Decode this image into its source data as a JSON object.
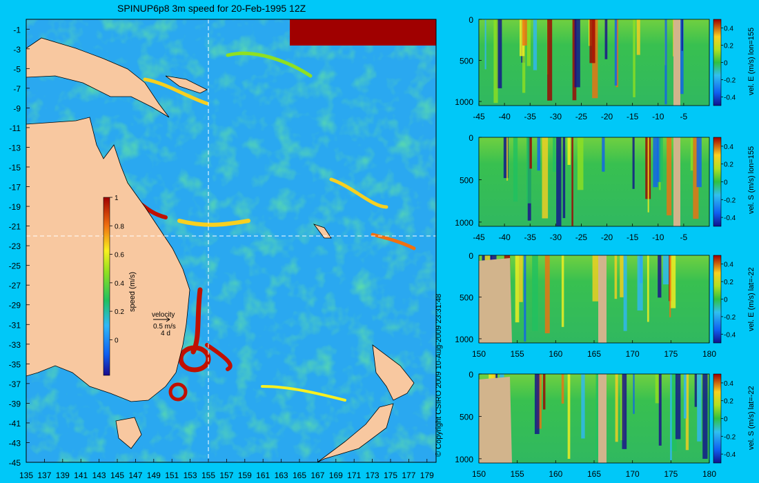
{
  "title": "SPINUP6p8 3m speed for 20-Feb-1995 12Z",
  "copyright": "© Copyright CSIRO 2009   10-Aug-2009 23:31:48",
  "colors": {
    "background": "#00c8f8",
    "land": "#f8c8a0",
    "section_land": "#d2b48c",
    "crosshair": "#ffffff"
  },
  "map": {
    "x_ticks": [
      "135",
      "137",
      "139",
      "141",
      "143",
      "145",
      "147",
      "149",
      "151",
      "153",
      "155",
      "157",
      "159",
      "161",
      "163",
      "165",
      "167",
      "169",
      "171",
      "173",
      "175",
      "177",
      "179"
    ],
    "y_ticks": [
      "-1",
      "-3",
      "-5",
      "-7",
      "-9",
      "-11",
      "-13",
      "-15",
      "-17",
      "-19",
      "-21",
      "-23",
      "-25",
      "-27",
      "-29",
      "-31",
      "-33",
      "-35",
      "-37",
      "-39",
      "-41",
      "-43",
      "-45"
    ],
    "crosshair": {
      "lon": 155,
      "lat": -22
    },
    "colorbar": {
      "label": "speed (m/s)",
      "ticks": [
        "1",
        "0.8",
        "0.6",
        "0.4",
        "0.2",
        "0"
      ]
    },
    "velocity_key": {
      "title": "velocity",
      "speed": "0.5 m/s",
      "duration": "4 d"
    }
  },
  "chart_data": [
    {
      "type": "heatmap",
      "title": "vel. E (m/s) lon=155",
      "ylabel": "",
      "xlabel": "",
      "x_ticks": [
        "-45",
        "-40",
        "-35",
        "-30",
        "-25",
        "-20",
        "-15",
        "-10",
        "-5"
      ],
      "y_ticks": [
        "0",
        "500",
        "1000"
      ],
      "xlim": [
        -45,
        0
      ],
      "ylim": [
        1050,
        0
      ],
      "colorbar": {
        "label": "vel. E (m/s) lon=155",
        "ticks": [
          "0.4",
          "0.2",
          "0",
          "-0.2",
          "-0.4"
        ],
        "range": [
          -0.5,
          0.5
        ]
      }
    },
    {
      "type": "heatmap",
      "title": "vel. S (m/s) lon=155",
      "ylabel": "",
      "xlabel": "",
      "x_ticks": [
        "-45",
        "-40",
        "-35",
        "-30",
        "-25",
        "-20",
        "-15",
        "-10",
        "-5"
      ],
      "y_ticks": [
        "0",
        "500",
        "1000"
      ],
      "xlim": [
        -45,
        0
      ],
      "ylim": [
        1050,
        0
      ],
      "colorbar": {
        "label": "vel. S (m/s) lon=155",
        "ticks": [
          "0.4",
          "0.2",
          "0",
          "-0.2",
          "-0.4"
        ],
        "range": [
          -0.5,
          0.5
        ]
      }
    },
    {
      "type": "heatmap",
      "title": "vel. E (m/s) lat=-22",
      "ylabel": "",
      "xlabel": "",
      "x_ticks": [
        "150",
        "155",
        "160",
        "165",
        "170",
        "175",
        "180"
      ],
      "y_ticks": [
        "0",
        "500",
        "1000"
      ],
      "xlim": [
        150,
        180
      ],
      "ylim": [
        1050,
        0
      ],
      "colorbar": {
        "label": "vel. E (m/s) lat=-22",
        "ticks": [
          "0.4",
          "0.2",
          "0",
          "-0.2",
          "-0.4"
        ],
        "range": [
          -0.5,
          0.5
        ]
      }
    },
    {
      "type": "heatmap",
      "title": "vel. S (m/s) lat=-22",
      "ylabel": "",
      "xlabel": "",
      "x_ticks": [
        "150",
        "155",
        "160",
        "165",
        "170",
        "175",
        "180"
      ],
      "y_ticks": [
        "0",
        "500",
        "1000"
      ],
      "xlim": [
        150,
        180
      ],
      "ylim": [
        1050,
        0
      ],
      "colorbar": {
        "label": "vel. S (m/s) lat=-22",
        "ticks": [
          "0.4",
          "0.2",
          "0",
          "-0.2",
          "-0.4"
        ],
        "range": [
          -0.5,
          0.5
        ]
      }
    }
  ]
}
